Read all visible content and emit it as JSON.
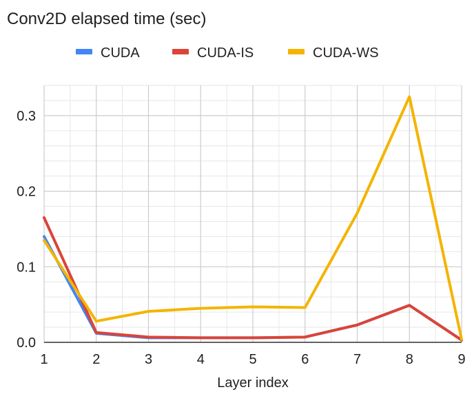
{
  "chart_data": {
    "type": "line",
    "title": "Conv2D elapsed time (sec)",
    "xlabel": "Layer index",
    "ylabel": "",
    "x": [
      1,
      2,
      3,
      4,
      5,
      6,
      7,
      8,
      9
    ],
    "xlim": [
      1,
      9
    ],
    "ylim": [
      0,
      0.34
    ],
    "y_ticks": [
      "0.0",
      "0.1",
      "0.2",
      "0.3"
    ],
    "x_ticks": [
      "1",
      "2",
      "3",
      "4",
      "5",
      "6",
      "7",
      "8",
      "9"
    ],
    "grid": true,
    "legend_position": "top",
    "series": [
      {
        "name": "CUDA",
        "color": "#4285f4",
        "values": [
          0.14,
          0.012,
          0.006,
          0.006,
          0.006,
          0.007,
          0.023,
          0.049,
          0.003
        ]
      },
      {
        "name": "CUDA-IS",
        "color": "#db4437",
        "values": [
          0.165,
          0.013,
          0.007,
          0.006,
          0.006,
          0.007,
          0.023,
          0.049,
          0.003
        ]
      },
      {
        "name": "CUDA-WS",
        "color": "#f4b400",
        "values": [
          0.135,
          0.028,
          0.041,
          0.045,
          0.047,
          0.046,
          0.171,
          0.325,
          0.004
        ]
      }
    ]
  }
}
